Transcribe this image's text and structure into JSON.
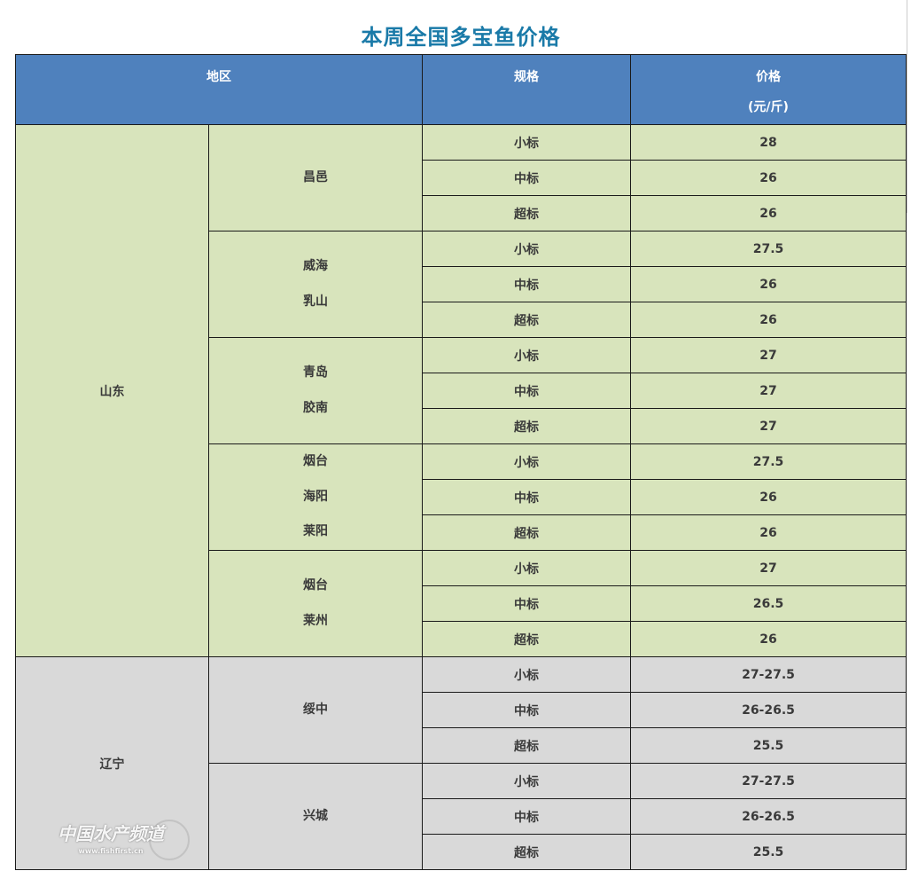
{
  "title": "本周全国多宝鱼价格",
  "header": {
    "region": "地区",
    "spec": "规格",
    "price": "价格",
    "unit": "(元/斤)"
  },
  "colors": {
    "header": "#4f81bd",
    "shandong": "#d8e4bc",
    "liaoning": "#d9d9d9",
    "title": "#1a7aa8"
  },
  "regions": [
    {
      "name": "山东",
      "color": "#d8e4bc",
      "cities": [
        {
          "lines": [
            "昌邑"
          ],
          "rows": [
            {
              "spec": "小标",
              "price": "28"
            },
            {
              "spec": "中标",
              "price": "26"
            },
            {
              "spec": "超标",
              "price": "26"
            }
          ]
        },
        {
          "lines": [
            "威海",
            "乳山"
          ],
          "rows": [
            {
              "spec": "小标",
              "price": "27.5"
            },
            {
              "spec": "中标",
              "price": "26"
            },
            {
              "spec": "超标",
              "price": "26"
            }
          ]
        },
        {
          "lines": [
            "青岛",
            "胶南"
          ],
          "rows": [
            {
              "spec": "小标",
              "price": "27"
            },
            {
              "spec": "中标",
              "price": "27"
            },
            {
              "spec": "超标",
              "price": "27"
            }
          ]
        },
        {
          "lines": [
            "烟台",
            "海阳",
            "莱阳"
          ],
          "rows": [
            {
              "spec": "小标",
              "price": "27.5"
            },
            {
              "spec": "中标",
              "price": "26"
            },
            {
              "spec": "超标",
              "price": "26"
            }
          ]
        },
        {
          "lines": [
            "烟台",
            "莱州"
          ],
          "rows": [
            {
              "spec": "小标",
              "price": "27"
            },
            {
              "spec": "中标",
              "price": "26.5"
            },
            {
              "spec": "超标",
              "price": "26"
            }
          ]
        }
      ]
    },
    {
      "name": "辽宁",
      "color": "#d9d9d9",
      "cities": [
        {
          "lines": [
            "绥中"
          ],
          "rows": [
            {
              "spec": "小标",
              "price": "27-27.5"
            },
            {
              "spec": "中标",
              "price": "26-26.5"
            },
            {
              "spec": "超标",
              "price": "25.5"
            }
          ]
        },
        {
          "lines": [
            "兴城"
          ],
          "rows": [
            {
              "spec": "小标",
              "price": "27-27.5"
            },
            {
              "spec": "中标",
              "price": "26-26.5"
            },
            {
              "spec": "超标",
              "price": "25.5"
            }
          ]
        }
      ]
    }
  ],
  "watermark": {
    "text": "中国水产频道",
    "url": "www.fishfirst.cn"
  }
}
